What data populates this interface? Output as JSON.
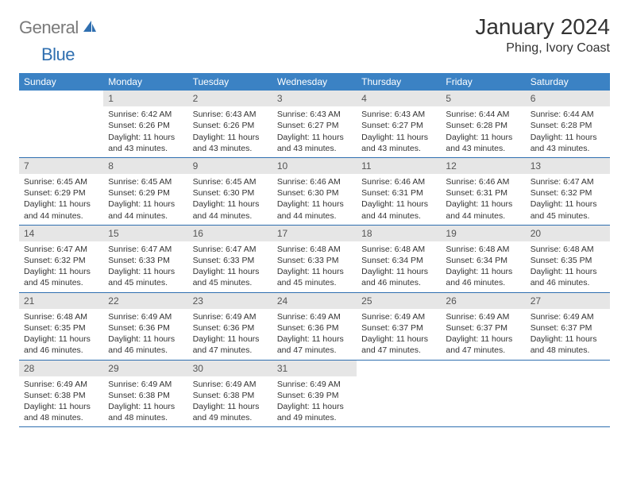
{
  "logo": {
    "text_gray": "General",
    "text_blue": "Blue"
  },
  "title": "January 2024",
  "location": "Phing, Ivory Coast",
  "colors": {
    "header_bg": "#3b82c4",
    "header_text": "#ffffff",
    "daynum_bg": "#e6e6e6",
    "daynum_text": "#555555",
    "body_text": "#333333",
    "week_border": "#2f6fb0",
    "logo_gray": "#7a7a7a",
    "logo_blue": "#2f6fb0"
  },
  "day_names": [
    "Sunday",
    "Monday",
    "Tuesday",
    "Wednesday",
    "Thursday",
    "Friday",
    "Saturday"
  ],
  "weeks": [
    [
      null,
      {
        "n": "1",
        "sr": "Sunrise: 6:42 AM",
        "ss": "Sunset: 6:26 PM",
        "d1": "Daylight: 11 hours",
        "d2": "and 43 minutes."
      },
      {
        "n": "2",
        "sr": "Sunrise: 6:43 AM",
        "ss": "Sunset: 6:26 PM",
        "d1": "Daylight: 11 hours",
        "d2": "and 43 minutes."
      },
      {
        "n": "3",
        "sr": "Sunrise: 6:43 AM",
        "ss": "Sunset: 6:27 PM",
        "d1": "Daylight: 11 hours",
        "d2": "and 43 minutes."
      },
      {
        "n": "4",
        "sr": "Sunrise: 6:43 AM",
        "ss": "Sunset: 6:27 PM",
        "d1": "Daylight: 11 hours",
        "d2": "and 43 minutes."
      },
      {
        "n": "5",
        "sr": "Sunrise: 6:44 AM",
        "ss": "Sunset: 6:28 PM",
        "d1": "Daylight: 11 hours",
        "d2": "and 43 minutes."
      },
      {
        "n": "6",
        "sr": "Sunrise: 6:44 AM",
        "ss": "Sunset: 6:28 PM",
        "d1": "Daylight: 11 hours",
        "d2": "and 43 minutes."
      }
    ],
    [
      {
        "n": "7",
        "sr": "Sunrise: 6:45 AM",
        "ss": "Sunset: 6:29 PM",
        "d1": "Daylight: 11 hours",
        "d2": "and 44 minutes."
      },
      {
        "n": "8",
        "sr": "Sunrise: 6:45 AM",
        "ss": "Sunset: 6:29 PM",
        "d1": "Daylight: 11 hours",
        "d2": "and 44 minutes."
      },
      {
        "n": "9",
        "sr": "Sunrise: 6:45 AM",
        "ss": "Sunset: 6:30 PM",
        "d1": "Daylight: 11 hours",
        "d2": "and 44 minutes."
      },
      {
        "n": "10",
        "sr": "Sunrise: 6:46 AM",
        "ss": "Sunset: 6:30 PM",
        "d1": "Daylight: 11 hours",
        "d2": "and 44 minutes."
      },
      {
        "n": "11",
        "sr": "Sunrise: 6:46 AM",
        "ss": "Sunset: 6:31 PM",
        "d1": "Daylight: 11 hours",
        "d2": "and 44 minutes."
      },
      {
        "n": "12",
        "sr": "Sunrise: 6:46 AM",
        "ss": "Sunset: 6:31 PM",
        "d1": "Daylight: 11 hours",
        "d2": "and 44 minutes."
      },
      {
        "n": "13",
        "sr": "Sunrise: 6:47 AM",
        "ss": "Sunset: 6:32 PM",
        "d1": "Daylight: 11 hours",
        "d2": "and 45 minutes."
      }
    ],
    [
      {
        "n": "14",
        "sr": "Sunrise: 6:47 AM",
        "ss": "Sunset: 6:32 PM",
        "d1": "Daylight: 11 hours",
        "d2": "and 45 minutes."
      },
      {
        "n": "15",
        "sr": "Sunrise: 6:47 AM",
        "ss": "Sunset: 6:33 PM",
        "d1": "Daylight: 11 hours",
        "d2": "and 45 minutes."
      },
      {
        "n": "16",
        "sr": "Sunrise: 6:47 AM",
        "ss": "Sunset: 6:33 PM",
        "d1": "Daylight: 11 hours",
        "d2": "and 45 minutes."
      },
      {
        "n": "17",
        "sr": "Sunrise: 6:48 AM",
        "ss": "Sunset: 6:33 PM",
        "d1": "Daylight: 11 hours",
        "d2": "and 45 minutes."
      },
      {
        "n": "18",
        "sr": "Sunrise: 6:48 AM",
        "ss": "Sunset: 6:34 PM",
        "d1": "Daylight: 11 hours",
        "d2": "and 46 minutes."
      },
      {
        "n": "19",
        "sr": "Sunrise: 6:48 AM",
        "ss": "Sunset: 6:34 PM",
        "d1": "Daylight: 11 hours",
        "d2": "and 46 minutes."
      },
      {
        "n": "20",
        "sr": "Sunrise: 6:48 AM",
        "ss": "Sunset: 6:35 PM",
        "d1": "Daylight: 11 hours",
        "d2": "and 46 minutes."
      }
    ],
    [
      {
        "n": "21",
        "sr": "Sunrise: 6:48 AM",
        "ss": "Sunset: 6:35 PM",
        "d1": "Daylight: 11 hours",
        "d2": "and 46 minutes."
      },
      {
        "n": "22",
        "sr": "Sunrise: 6:49 AM",
        "ss": "Sunset: 6:36 PM",
        "d1": "Daylight: 11 hours",
        "d2": "and 46 minutes."
      },
      {
        "n": "23",
        "sr": "Sunrise: 6:49 AM",
        "ss": "Sunset: 6:36 PM",
        "d1": "Daylight: 11 hours",
        "d2": "and 47 minutes."
      },
      {
        "n": "24",
        "sr": "Sunrise: 6:49 AM",
        "ss": "Sunset: 6:36 PM",
        "d1": "Daylight: 11 hours",
        "d2": "and 47 minutes."
      },
      {
        "n": "25",
        "sr": "Sunrise: 6:49 AM",
        "ss": "Sunset: 6:37 PM",
        "d1": "Daylight: 11 hours",
        "d2": "and 47 minutes."
      },
      {
        "n": "26",
        "sr": "Sunrise: 6:49 AM",
        "ss": "Sunset: 6:37 PM",
        "d1": "Daylight: 11 hours",
        "d2": "and 47 minutes."
      },
      {
        "n": "27",
        "sr": "Sunrise: 6:49 AM",
        "ss": "Sunset: 6:37 PM",
        "d1": "Daylight: 11 hours",
        "d2": "and 48 minutes."
      }
    ],
    [
      {
        "n": "28",
        "sr": "Sunrise: 6:49 AM",
        "ss": "Sunset: 6:38 PM",
        "d1": "Daylight: 11 hours",
        "d2": "and 48 minutes."
      },
      {
        "n": "29",
        "sr": "Sunrise: 6:49 AM",
        "ss": "Sunset: 6:38 PM",
        "d1": "Daylight: 11 hours",
        "d2": "and 48 minutes."
      },
      {
        "n": "30",
        "sr": "Sunrise: 6:49 AM",
        "ss": "Sunset: 6:38 PM",
        "d1": "Daylight: 11 hours",
        "d2": "and 49 minutes."
      },
      {
        "n": "31",
        "sr": "Sunrise: 6:49 AM",
        "ss": "Sunset: 6:39 PM",
        "d1": "Daylight: 11 hours",
        "d2": "and 49 minutes."
      },
      null,
      null,
      null
    ]
  ]
}
